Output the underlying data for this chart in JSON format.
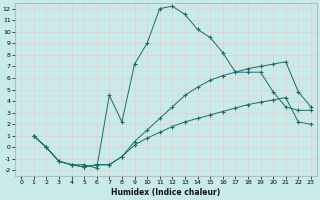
{
  "bg_color": "#c8eaea",
  "grid_color": "#f0c8c8",
  "line_color": "#1a6b6b",
  "xlabel": "Humidex (Indice chaleur)",
  "xlim": [
    -0.5,
    23.5
  ],
  "ylim": [
    -2.5,
    12.5
  ],
  "yticks": [
    -2,
    -1,
    0,
    1,
    2,
    3,
    4,
    5,
    6,
    7,
    8,
    9,
    10,
    11,
    12
  ],
  "xticks": [
    0,
    1,
    2,
    3,
    4,
    5,
    6,
    7,
    8,
    9,
    10,
    11,
    12,
    13,
    14,
    15,
    16,
    17,
    18,
    19,
    20,
    21,
    22,
    23
  ],
  "curve1_x": [
    1,
    2,
    3,
    4,
    5,
    6,
    7,
    8,
    9,
    10,
    11,
    12,
    13,
    14,
    15,
    16,
    17,
    18,
    19,
    20,
    21,
    22,
    23
  ],
  "curve1_y": [
    1,
    0,
    -1.2,
    -1.5,
    -1.5,
    -1.8,
    4.5,
    2.2,
    7.2,
    9.0,
    12.0,
    12.2,
    11.5,
    10.2,
    9.5,
    8.2,
    6.5,
    6.5,
    6.5,
    4.8,
    3.5,
    3.2,
    3.2
  ],
  "curve2_x": [
    1,
    2,
    3,
    4,
    5,
    6,
    7,
    8,
    9,
    10,
    11,
    12,
    13,
    14,
    15,
    16,
    17,
    18,
    19,
    20,
    21,
    22,
    23
  ],
  "curve2_y": [
    1,
    0,
    -1.2,
    -1.5,
    -1.7,
    -1.5,
    -1.5,
    -0.8,
    0.5,
    1.5,
    2.5,
    3.5,
    4.5,
    5.2,
    5.8,
    6.2,
    6.5,
    6.8,
    7.0,
    7.2,
    7.4,
    4.8,
    3.5
  ],
  "curve3_x": [
    1,
    2,
    3,
    4,
    5,
    6,
    7,
    8,
    9,
    10,
    11,
    12,
    13,
    14,
    15,
    16,
    17,
    18,
    19,
    20,
    21,
    22,
    23
  ],
  "curve3_y": [
    1,
    0,
    -1.2,
    -1.5,
    -1.7,
    -1.5,
    -1.5,
    -0.8,
    0.2,
    0.8,
    1.3,
    1.8,
    2.2,
    2.5,
    2.8,
    3.1,
    3.4,
    3.7,
    3.9,
    4.1,
    4.3,
    2.2,
    2.0
  ]
}
